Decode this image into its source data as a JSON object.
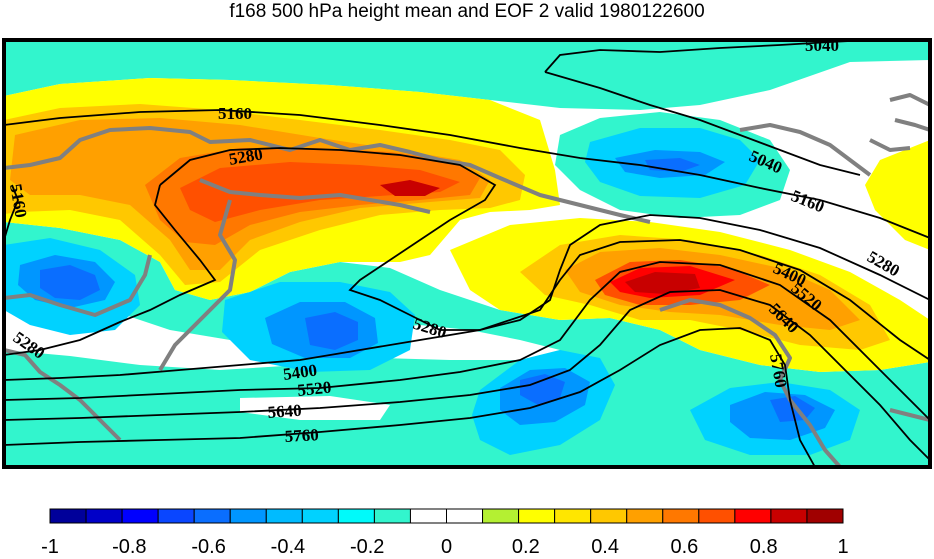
{
  "title": "f168 500 hPa height mean and EOF 2 valid 1980122600",
  "contour_labels": [
    "5040",
    "5040",
    "5160",
    "5160",
    "5160",
    "5280",
    "5280",
    "5280",
    "5280",
    "5400",
    "5400",
    "5520",
    "5520",
    "5640",
    "5640",
    "5760",
    "5760"
  ],
  "colorbar": {
    "colors": [
      "#00009a",
      "#0000c8",
      "#0000ff",
      "#0a46ff",
      "#0a6eff",
      "#0096ff",
      "#00bbff",
      "#00d2ff",
      "#00fafa",
      "#32f5cd",
      "#ffffff",
      "#ffffff",
      "#b4f032",
      "#ffff00",
      "#ffe600",
      "#ffc800",
      "#ffa000",
      "#ff7800",
      "#ff5000",
      "#ff0000",
      "#c80000",
      "#a00000"
    ],
    "tick_labels": [
      "-1",
      "-0.8",
      "-0.6",
      "-0.4",
      "-0.2",
      "0",
      "0.2",
      "0.4",
      "0.6",
      "0.8",
      "1"
    ]
  },
  "colors": {
    "coast": "#808080",
    "contour": "#000000",
    "frame": "#000000"
  }
}
